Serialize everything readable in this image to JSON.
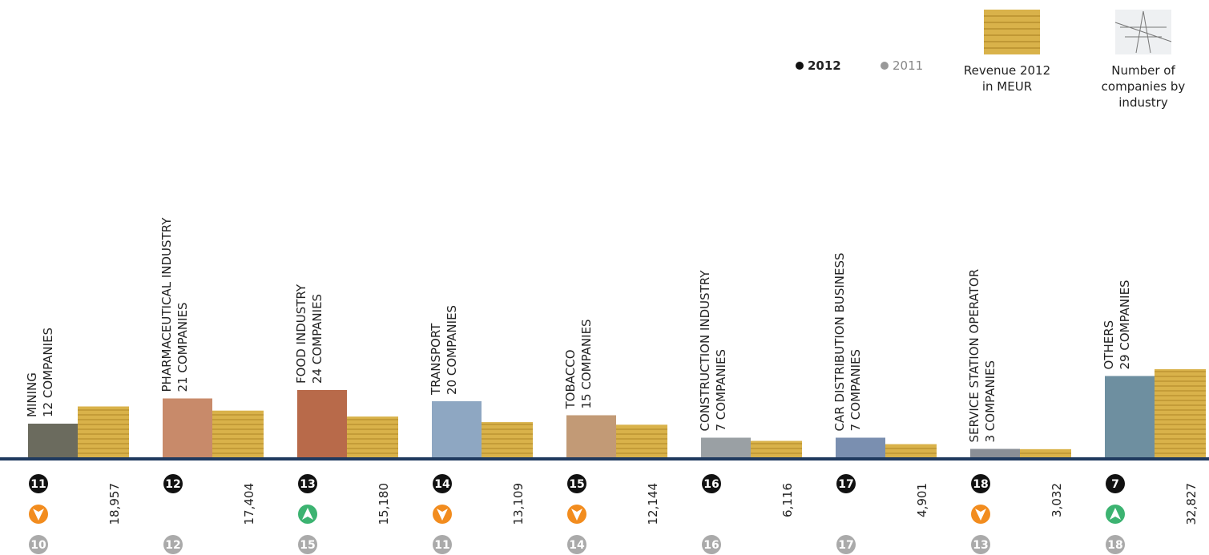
{
  "chart_data": {
    "type": "bar",
    "legend": {
      "current": "2012",
      "previous": "2011",
      "revenue": [
        "Revenue 2012",
        "in MEUR"
      ],
      "companies": [
        "Number of",
        "companies by",
        "industry"
      ]
    },
    "categories": [
      "MINING",
      "PHARMACEUTICAL INDUSTRY",
      "FOOD INDUSTRY",
      "TRANSPORT",
      "TOBACCO",
      "CONSTRUCTION INDUSTRY",
      "CAR DISTRIBUTION BUSINESS",
      "SERVICE STATION OPERATOR",
      "OTHERS"
    ],
    "companies": [
      12,
      21,
      24,
      20,
      15,
      7,
      7,
      3,
      29
    ],
    "companies_labels": [
      "12 COMPANIES",
      "21 COMPANIES",
      "24 COMPANIES",
      "20 COMPANIES",
      "15 COMPANIES",
      "7 COMPANIES",
      "7 COMPANIES",
      "3 COMPANIES",
      "29 COMPANIES"
    ],
    "values": [
      18957,
      17404,
      15180,
      13109,
      12144,
      6116,
      4901,
      3032,
      32827
    ],
    "value_labels": [
      "18,957",
      "17,404",
      "15,180",
      "13,109",
      "12,144",
      "6,116",
      "4,901",
      "3,032",
      "32,827"
    ],
    "rank_2012": [
      11,
      12,
      13,
      14,
      15,
      16,
      17,
      18,
      7
    ],
    "rank_2011": [
      10,
      12,
      15,
      11,
      14,
      16,
      17,
      13,
      18
    ],
    "color": "#d9b24a",
    "up_color": "#3cb371",
    "down_color": "#f28c1e"
  }
}
